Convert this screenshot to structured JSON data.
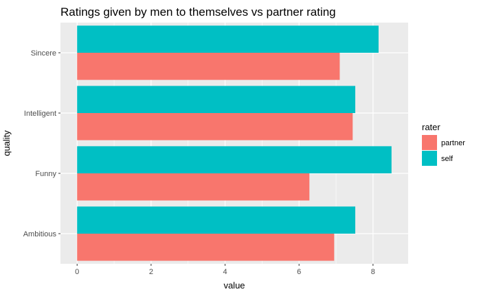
{
  "chart_data": {
    "type": "bar",
    "orientation": "horizontal",
    "title": "Ratings given by men to themselves vs partner rating",
    "xlabel": "value",
    "ylabel": "quality",
    "categories": [
      "Sincere",
      "Intelligent",
      "Funny",
      "Ambitious"
    ],
    "series": [
      {
        "name": "self",
        "color": "#00BFC4",
        "values": [
          8.15,
          7.52,
          8.5,
          7.52
        ]
      },
      {
        "name": "partner",
        "color": "#F8766D",
        "values": [
          7.1,
          7.45,
          6.28,
          6.95
        ]
      }
    ],
    "xlim": [
      -0.45,
      8.95
    ],
    "xticks": [
      0,
      2,
      4,
      6,
      8
    ],
    "grid": true,
    "panel_background": "#EBEBEB",
    "legend": {
      "title": "rater",
      "placement": "right",
      "entries": [
        {
          "label": "partner",
          "color": "#F8766D"
        },
        {
          "label": "self",
          "color": "#00BFC4"
        }
      ]
    }
  }
}
